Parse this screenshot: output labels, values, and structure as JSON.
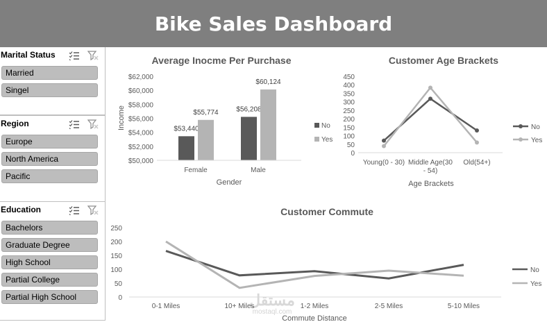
{
  "header": {
    "title": "Bike Sales Dashboard"
  },
  "slicers": {
    "marital": {
      "title": "Marital Status",
      "items": [
        "Married",
        "Singel"
      ]
    },
    "region": {
      "title": "Region",
      "items": [
        "Europe",
        "North America",
        "Pacific"
      ]
    },
    "education": {
      "title": "Education",
      "items": [
        "Bachelors",
        "Graduate Degree",
        "High School",
        "Partial College",
        "Partial High School"
      ]
    }
  },
  "watermark": {
    "brand": "مستقل",
    "domain": "mostaql.com"
  },
  "colors": {
    "no": "#595959",
    "yes": "#b4b4b4",
    "header": "#7f7f7f"
  },
  "chart_data": [
    {
      "type": "bar",
      "title": "Average Inocme Per Purchase",
      "xlabel": "Gender",
      "ylabel": "Income",
      "categories": [
        "Female",
        "Male"
      ],
      "series": [
        {
          "name": "No",
          "values": [
            53440,
            56208
          ],
          "labels": [
            "$53,440",
            "$56,208"
          ]
        },
        {
          "name": "Yes",
          "values": [
            55774,
            60124
          ],
          "labels": [
            "$55,774",
            "$60,124"
          ]
        }
      ],
      "ylim": [
        50000,
        62000
      ],
      "yticks": [
        50000,
        52000,
        54000,
        56000,
        58000,
        60000,
        62000
      ],
      "ytick_labels": [
        "$50,000",
        "$52,000",
        "$54,000",
        "$56,000",
        "$58,000",
        "$60,000",
        "$62,000"
      ],
      "legend": "right"
    },
    {
      "type": "line",
      "title": "Customer Age Brackets",
      "xlabel": "Age Brackets",
      "categories": [
        "Young(0 - 30)",
        "Middle Age(30 - 54)",
        "Old(54+)"
      ],
      "series": [
        {
          "name": "No",
          "values": [
            71,
            318,
            131
          ]
        },
        {
          "name": "Yes",
          "values": [
            39,
            383,
            60
          ]
        }
      ],
      "ylim": [
        0,
        450
      ],
      "yticks": [
        0,
        50,
        100,
        150,
        200,
        250,
        300,
        350,
        400,
        450
      ],
      "legend": "right"
    },
    {
      "type": "line",
      "title": "Customer Commute",
      "xlabel": "Commute Distance",
      "categories": [
        "0-1 Miles",
        "10+ Miles",
        "1-2 Miles",
        "2-5 Miles",
        "5-10 Miles"
      ],
      "series": [
        {
          "name": "No",
          "values": [
            166,
            78,
            93,
            67,
            116
          ]
        },
        {
          "name": "Yes",
          "values": [
            200,
            33,
            76,
            95,
            77
          ]
        }
      ],
      "ylim": [
        0,
        250
      ],
      "yticks": [
        0,
        50,
        100,
        150,
        200,
        250
      ],
      "legend": "right"
    }
  ]
}
